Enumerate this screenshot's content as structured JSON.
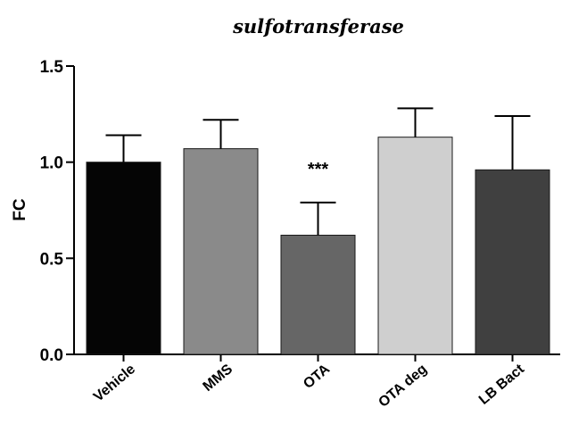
{
  "chart_data": {
    "type": "bar",
    "title": "sulfotransferase",
    "ylabel": "FC",
    "xlabel": "",
    "ylim": [
      0,
      1.5
    ],
    "yticks": [
      0.0,
      0.5,
      1.0,
      1.5
    ],
    "ytick_labels": [
      "0.0",
      "0.5",
      "1.0",
      "1.5"
    ],
    "categories": [
      "Vehicle",
      "MMS",
      "OTA",
      "OTA deg",
      "LB Bact"
    ],
    "values": [
      1.0,
      1.07,
      0.62,
      1.13,
      0.96
    ],
    "errors": [
      0.14,
      0.15,
      0.17,
      0.15,
      0.28
    ],
    "colors": [
      "#050505",
      "#8a8a8a",
      "#666666",
      "#cfcfcf",
      "#404040"
    ],
    "annotations": [
      {
        "category": "OTA",
        "text": "***"
      }
    ],
    "grid": false,
    "legend": "none"
  }
}
